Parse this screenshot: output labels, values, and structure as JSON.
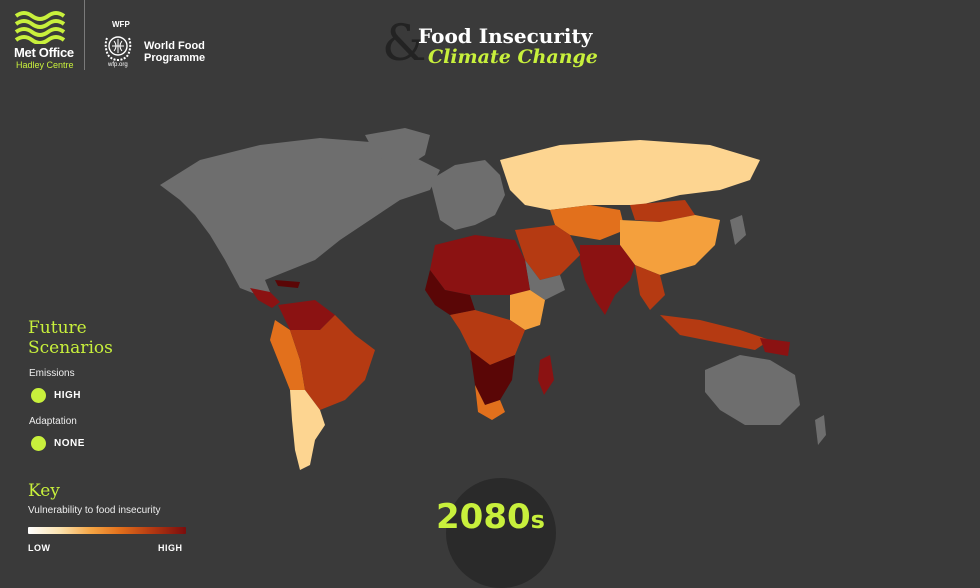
{
  "header": {
    "metoffice": {
      "name": "Met Office",
      "sub": "Hadley Centre"
    },
    "wfp": {
      "top": "WFP",
      "name_line1": "World Food",
      "name_line2": "Programme",
      "url": "wfp.org"
    },
    "title": {
      "ampersand": "&",
      "line1": "Food Insecurity",
      "line2": "Climate Change"
    }
  },
  "scenarios": {
    "title_line1": "Future",
    "title_line2": "Scenarios",
    "emissions_label": "Emissions",
    "emissions_value": "HIGH",
    "adaptation_label": "Adaptation",
    "adaptation_value": "NONE"
  },
  "key": {
    "title": "Key",
    "subtitle": "Vulnerability to food insecurity",
    "low": "LOW",
    "high": "HIGH"
  },
  "era": {
    "value": "2080",
    "suffix": "s"
  },
  "colors": {
    "accent": "#c8f03c",
    "background": "#3a3a3a",
    "no_data": "#6e6e6e",
    "very_low": "#fdd591",
    "low": "#f4a03d",
    "medium": "#e2701c",
    "high": "#b53a12",
    "very_high": "#8b1212",
    "extreme": "#5a0606"
  }
}
